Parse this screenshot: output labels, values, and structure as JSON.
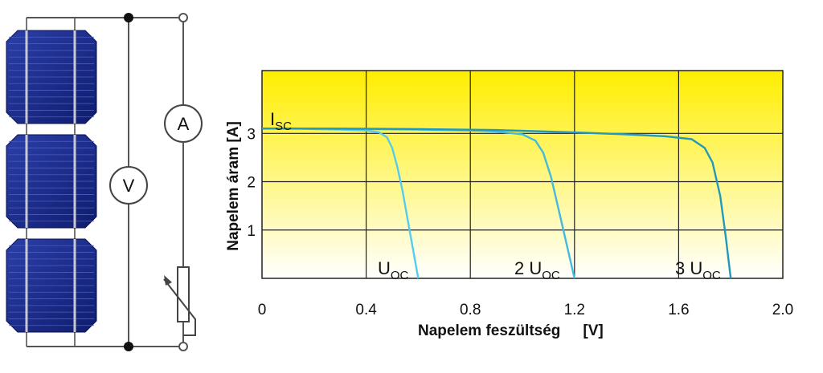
{
  "circuit": {
    "voltmeter_label": "V",
    "ammeter_label": "A",
    "cell_count": 3,
    "colors": {
      "cell": "#1c2e8c",
      "wire": "#555555"
    }
  },
  "chart_data": {
    "type": "line",
    "xlabel": "Napelem feszültség",
    "xunit": "[V]",
    "ylabel": "Napelem áram [A]",
    "xlim": [
      0,
      2.0
    ],
    "ylim": [
      0,
      4.3
    ],
    "x_ticks": [
      "0",
      "0.4",
      "0.8",
      "1.2",
      "1.6",
      "2.0"
    ],
    "x_tick_values": [
      0,
      0.4,
      0.8,
      1.2,
      1.6,
      2.0
    ],
    "y_ticks": [
      "1",
      "2",
      "3"
    ],
    "y_tick_values": [
      1,
      2,
      3
    ],
    "grid": true,
    "background": {
      "top": "#ffee00",
      "bottom": "#ffffff"
    },
    "isc_label": {
      "main": "I",
      "sub": "SC"
    },
    "series": [
      {
        "color": "#55ccee",
        "label_prefix": "",
        "label_main": "U",
        "label_sub": "OC",
        "x": [
          0,
          0.1,
          0.2,
          0.3,
          0.4,
          0.45,
          0.48,
          0.5,
          0.52,
          0.54,
          0.56,
          0.58,
          0.6
        ],
        "y": [
          3.1,
          3.1,
          3.09,
          3.08,
          3.06,
          3.02,
          2.92,
          2.7,
          2.3,
          1.8,
          1.2,
          0.6,
          0.0
        ]
      },
      {
        "color": "#44bbdd",
        "label_prefix": "2 ",
        "label_main": "U",
        "label_sub": "OC",
        "x": [
          0,
          0.2,
          0.4,
          0.6,
          0.8,
          0.9,
          1.0,
          1.05,
          1.08,
          1.11,
          1.14,
          1.17,
          1.2
        ],
        "y": [
          3.1,
          3.1,
          3.09,
          3.08,
          3.06,
          3.04,
          2.98,
          2.85,
          2.6,
          2.1,
          1.4,
          0.7,
          0.0
        ]
      },
      {
        "color": "#2299bb",
        "label_prefix": "3 ",
        "label_main": "U",
        "label_sub": "OC",
        "x": [
          0,
          0.3,
          0.6,
          0.9,
          1.2,
          1.4,
          1.55,
          1.65,
          1.7,
          1.73,
          1.76,
          1.78,
          1.8
        ],
        "y": [
          3.1,
          3.1,
          3.09,
          3.07,
          3.02,
          2.98,
          2.94,
          2.88,
          2.7,
          2.4,
          1.7,
          0.9,
          0.0
        ]
      }
    ]
  }
}
